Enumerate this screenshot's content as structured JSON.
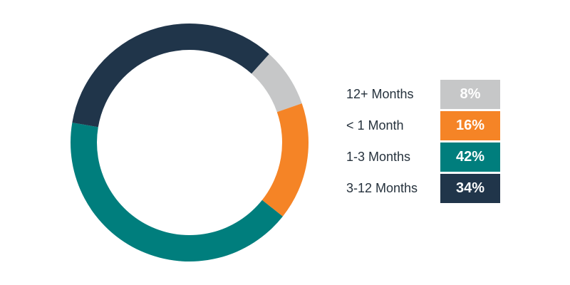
{
  "chart_data": {
    "type": "pie",
    "donut": true,
    "slices": [
      {
        "label": "12+ Months",
        "value": 8,
        "display": "8%",
        "color": "#c6c7c8"
      },
      {
        "label": "< 1 Month",
        "value": 16,
        "display": "16%",
        "color": "#f58426"
      },
      {
        "label": "1-3 Months",
        "value": 42,
        "display": "42%",
        "color": "#007e7d"
      },
      {
        "label": "3-12 Months",
        "value": 34,
        "display": "34%",
        "color": "#20354a"
      }
    ],
    "legend": "right"
  }
}
